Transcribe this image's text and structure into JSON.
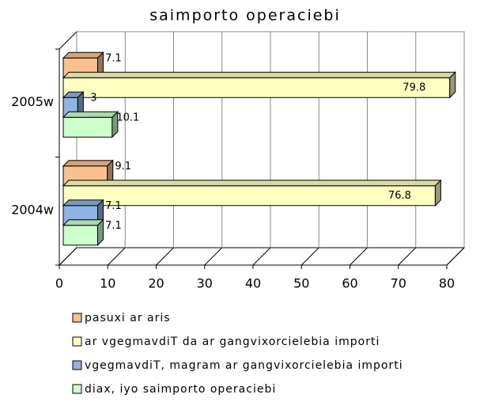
{
  "chart_data": {
    "type": "bar",
    "orientation": "horizontal",
    "title": "saimporto operaciebi",
    "categories": [
      "2004w",
      "2005w"
    ],
    "series": [
      {
        "name": "pasuxi ar aris",
        "color": "#FAC090",
        "values": [
          9.1,
          7.1
        ]
      },
      {
        "name": "ar vgegmavdiT da ar gangvixorcielebia importi",
        "color": "#FFFFC0",
        "values": [
          76.8,
          79.8
        ]
      },
      {
        "name": "vgegmavdiT, magram ar gangvixorcielebia importi",
        "color": "#8EB4E3",
        "values": [
          7.1,
          3
        ]
      },
      {
        "name": "diax, iyo saimporto operaciebi",
        "color": "#CCFFCC",
        "values": [
          7.1,
          10.1
        ]
      }
    ],
    "xlim": [
      0,
      80
    ],
    "xticks": [
      0,
      10,
      20,
      30,
      40,
      50,
      60,
      70,
      80
    ],
    "grid": true,
    "legend": "bottom"
  }
}
